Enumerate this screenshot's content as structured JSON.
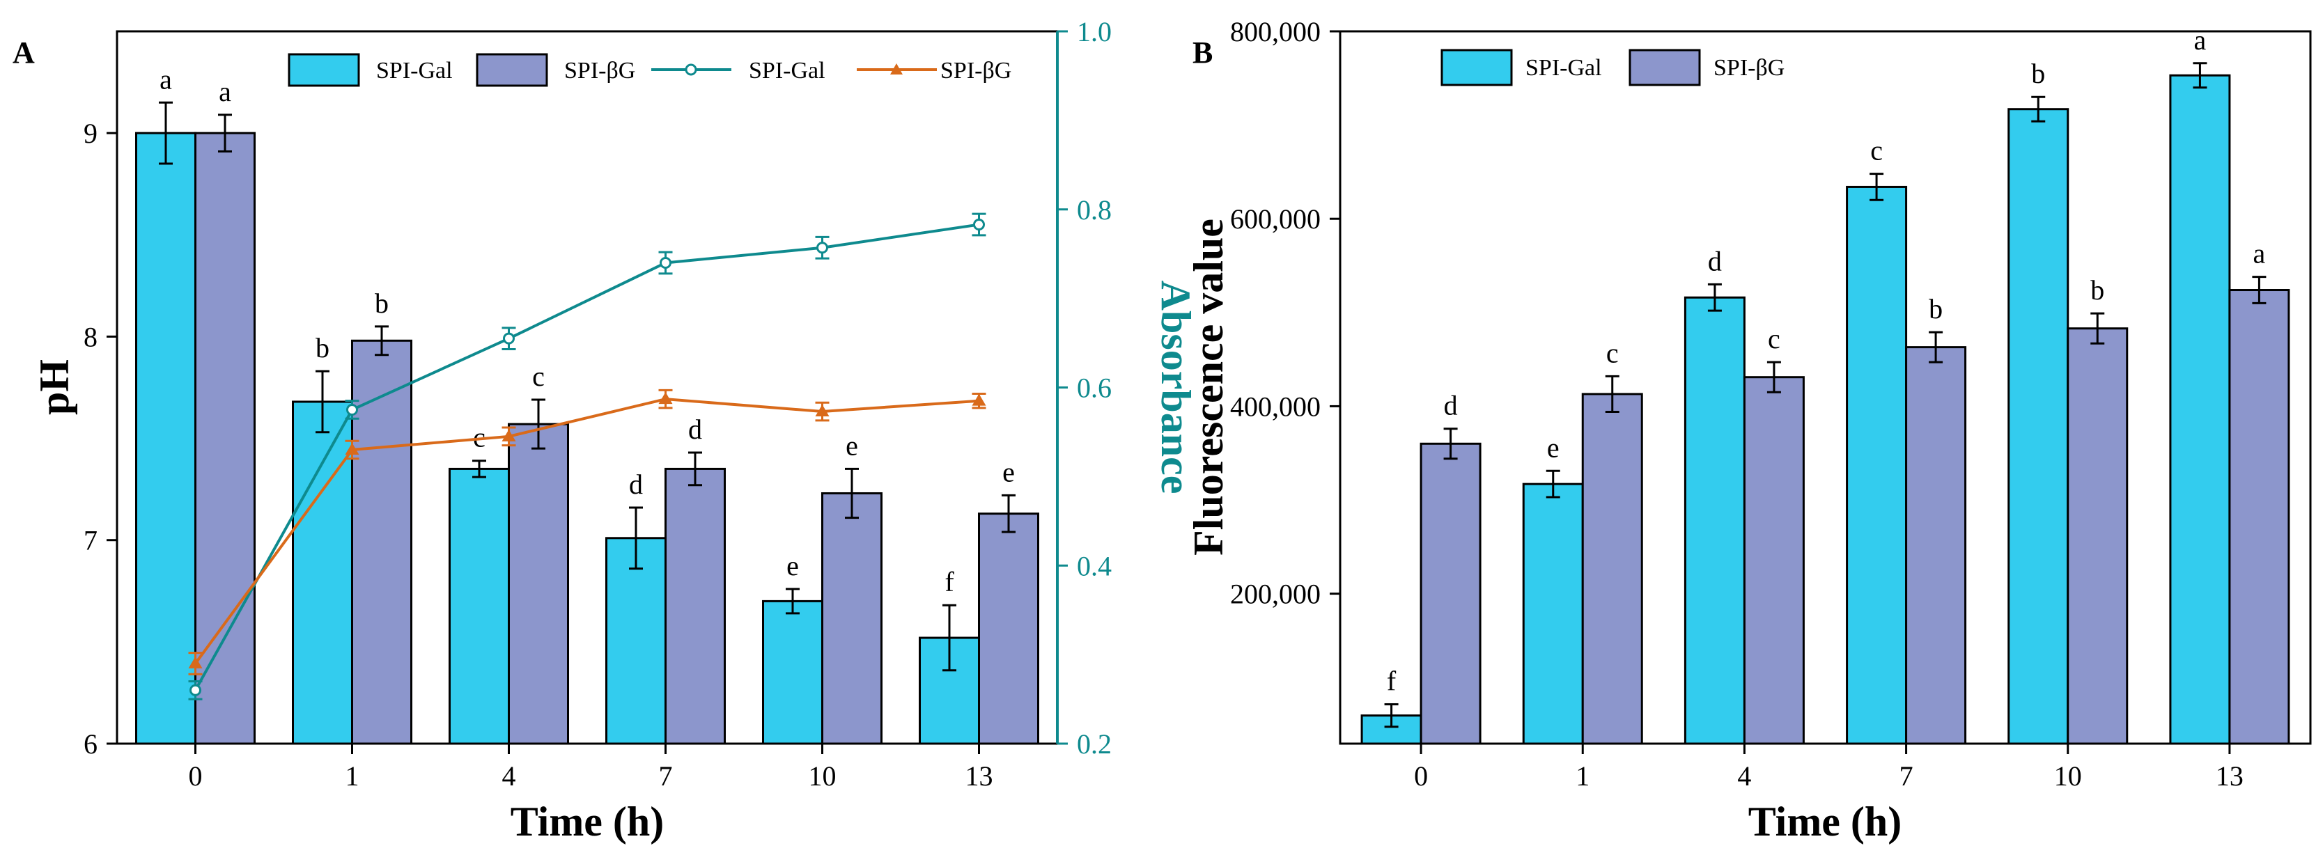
{
  "colors": {
    "gal_bar": "#33CCEE",
    "bg_bar": "#8C96CC",
    "gal_line": "#0E8A8E",
    "bg_line": "#D96A1A",
    "axis": "#000000"
  },
  "chart_data": [
    {
      "type": "bar+line",
      "panel_label": "A",
      "xlabel": "Time (h)",
      "ylabel": "pH",
      "y2label": "Absorbance",
      "categories": [
        "0",
        "1",
        "4",
        "7",
        "10",
        "13"
      ],
      "ylim": [
        6,
        9.5
      ],
      "yticks": [
        "6",
        "7",
        "8",
        "9"
      ],
      "y2lim": [
        0.2,
        1.0
      ],
      "y2ticks": [
        "0.2",
        "0.4",
        "0.6",
        "0.8",
        "1.0"
      ],
      "bar_series": [
        {
          "name": "SPI-Gal",
          "values": [
            9.0,
            7.68,
            7.35,
            7.01,
            6.7,
            6.52
          ],
          "errors": [
            0.15,
            0.15,
            0.04,
            0.15,
            0.06,
            0.16
          ],
          "labels": [
            "a",
            "b",
            "c",
            "d",
            "e",
            "f"
          ]
        },
        {
          "name": "SPI-βG",
          "values": [
            9.0,
            7.98,
            7.57,
            7.35,
            7.23,
            7.13
          ],
          "errors": [
            0.09,
            0.07,
            0.12,
            0.08,
            0.12,
            0.09
          ],
          "labels": [
            "a",
            "b",
            "c",
            "d",
            "e",
            "e"
          ]
        }
      ],
      "line_series": [
        {
          "name": "SPI-Gal",
          "marker": "circle",
          "values": [
            0.26,
            0.575,
            0.655,
            0.74,
            0.757,
            0.783
          ],
          "errors": [
            0.01,
            0.01,
            0.012,
            0.012,
            0.012,
            0.012
          ]
        },
        {
          "name": "SPI-βG",
          "marker": "triangle",
          "values": [
            0.29,
            0.53,
            0.545,
            0.587,
            0.573,
            0.585
          ],
          "errors": [
            0.012,
            0.01,
            0.01,
            0.01,
            0.01,
            0.008
          ]
        }
      ],
      "legend": [
        "SPI-Gal",
        "SPI-βG",
        "SPI-Gal",
        "SPI-βG"
      ]
    },
    {
      "type": "bar",
      "panel_label": "B",
      "xlabel": "Time (h)",
      "ylabel": "Fluorescence value",
      "categories": [
        "0",
        "1",
        "4",
        "7",
        "10",
        "13"
      ],
      "ylim": [
        40000,
        800000
      ],
      "yticks": [
        "200,000",
        "400,000",
        "600,000",
        "800,000"
      ],
      "series": [
        {
          "name": "SPI-Gal",
          "values": [
            70000,
            317000,
            516000,
            634000,
            717000,
            753000
          ],
          "errors": [
            12000,
            14000,
            14000,
            14000,
            13000,
            13000
          ],
          "labels": [
            "f",
            "e",
            "d",
            "c",
            "b",
            "a"
          ]
        },
        {
          "name": "SPI-βG",
          "values": [
            360000,
            413000,
            431000,
            463000,
            483000,
            524000
          ],
          "errors": [
            16000,
            19000,
            16000,
            16000,
            16000,
            14000
          ],
          "labels": [
            "d",
            "c",
            "c",
            "b",
            "b",
            "a"
          ]
        }
      ],
      "legend": [
        "SPI-Gal",
        "SPI-βG"
      ]
    }
  ]
}
